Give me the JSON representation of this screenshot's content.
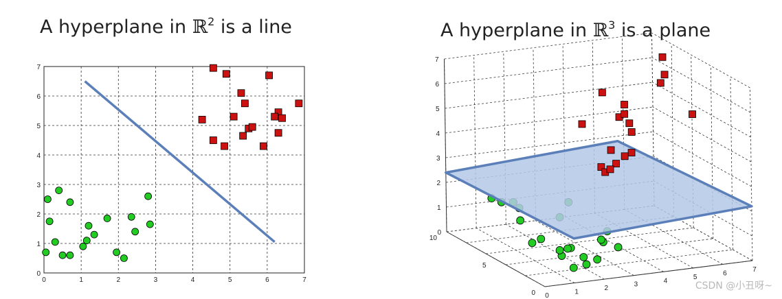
{
  "left_title": {
    "prefix": "A hyperplane in ",
    "symbol": "ℝ",
    "power": "2",
    "suffix": " is a line"
  },
  "right_title": {
    "prefix": "A hyperplane in ",
    "symbol": "ℝ",
    "power": "3",
    "suffix": " is a plane"
  },
  "watermark": "CSDN @小丑呀~",
  "colors": {
    "class_a": "#cc1111",
    "class_b": "#22cc22",
    "hyperplane": "#5b7fb8",
    "plane_fill": "#b4c8e6"
  },
  "chart_data": [
    {
      "type": "scatter",
      "title": "A hyperplane in ℝ2 is a line",
      "xlim": [
        0,
        7
      ],
      "ylim": [
        0,
        7
      ],
      "xticks": [
        "0",
        "1",
        "2",
        "3",
        "4",
        "5",
        "6",
        "7"
      ],
      "yticks": [
        "0",
        "1",
        "2",
        "3",
        "4",
        "5",
        "6",
        "7"
      ],
      "grid": true,
      "series": [
        {
          "marker": "square",
          "color": "#cc1111",
          "points": [
            [
              4.55,
              6.95
            ],
            [
              4.9,
              6.75
            ],
            [
              6.05,
              6.7
            ],
            [
              5.3,
              6.1
            ],
            [
              5.4,
              5.75
            ],
            [
              6.85,
              5.75
            ],
            [
              6.3,
              5.45
            ],
            [
              5.1,
              5.3
            ],
            [
              6.2,
              5.3
            ],
            [
              6.4,
              5.25
            ],
            [
              4.25,
              5.2
            ],
            [
              5.5,
              4.9
            ],
            [
              5.6,
              4.95
            ],
            [
              5.35,
              4.65
            ],
            [
              6.3,
              4.75
            ],
            [
              4.55,
              4.5
            ],
            [
              4.85,
              4.3
            ],
            [
              5.9,
              4.3
            ]
          ]
        },
        {
          "marker": "circle",
          "color": "#22cc22",
          "points": [
            [
              0.4,
              2.8
            ],
            [
              0.1,
              2.5
            ],
            [
              0.7,
              2.4
            ],
            [
              2.8,
              2.6
            ],
            [
              0.15,
              1.75
            ],
            [
              1.7,
              1.85
            ],
            [
              2.35,
              1.9
            ],
            [
              2.85,
              1.65
            ],
            [
              1.2,
              1.6
            ],
            [
              2.45,
              1.4
            ],
            [
              1.35,
              1.3
            ],
            [
              1.15,
              1.1
            ],
            [
              0.3,
              1.05
            ],
            [
              1.05,
              0.9
            ],
            [
              0.05,
              0.7
            ],
            [
              0.5,
              0.6
            ],
            [
              0.7,
              0.6
            ],
            [
              1.95,
              0.7
            ],
            [
              2.15,
              0.5
            ]
          ]
        }
      ],
      "line": {
        "x": [
          1.1,
          6.2
        ],
        "y": [
          6.5,
          1.05
        ]
      }
    },
    {
      "type": "scatter",
      "title": "A hyperplane in ℝ3 is a plane",
      "xlim": [
        0,
        7
      ],
      "ylim": [
        0,
        10
      ],
      "zlim": [
        0,
        7
      ],
      "xticks": [
        "0",
        "1",
        "2",
        "3",
        "4",
        "5",
        "6",
        "7"
      ],
      "yticks": [
        "0",
        "5",
        "10"
      ],
      "zticks": [
        "0",
        "1",
        "2",
        "3",
        "4",
        "5",
        "6",
        "7"
      ],
      "grid": true,
      "series": [
        {
          "marker": "square",
          "color": "#cc1111",
          "points": [
            [
              6.1,
              6.2,
              7
            ],
            [
              5.9,
              5.4,
              6.5
            ],
            [
              5.5,
              4.6,
              6.4
            ],
            [
              3.3,
              3.9,
              6.5
            ],
            [
              3.4,
              2.5,
              5.8
            ],
            [
              4.1,
              3.6,
              5.2
            ],
            [
              4.4,
              5.0,
              5.6
            ],
            [
              3.0,
              5.1,
              5.0
            ],
            [
              4.3,
              4.7,
              5.3
            ],
            [
              3.8,
              2.5,
              4.3
            ],
            [
              5.8,
              2.3,
              5.6
            ],
            [
              4.7,
              5.2,
              4.4
            ],
            [
              3.6,
              4.0,
              4.1
            ],
            [
              3.8,
              3.2,
              4.0
            ],
            [
              3.1,
              3.5,
              3.6
            ],
            [
              3.8,
              4.1,
              3.5
            ],
            [
              3.2,
              3.4,
              3.4
            ],
            [
              3.6,
              4.1,
              3.3
            ]
          ]
        },
        {
          "marker": "circle",
          "color": "#22cc22",
          "points": [
            [
              3.0,
              6.6,
              1.5
            ],
            [
              2.5,
              6.0,
              1.1
            ],
            [
              3.6,
              4.5,
              0.7
            ],
            [
              3.2,
              3.7,
              0.5
            ],
            [
              3.6,
              3.4,
              0.3
            ],
            [
              2.9,
              3.0,
              0.8
            ],
            [
              1.2,
              9.0,
              1.4
            ],
            [
              1.4,
              8.6,
              1.3
            ],
            [
              1.6,
              8.0,
              1.4
            ],
            [
              1.6,
              7.4,
              1.3
            ],
            [
              2.5,
              4.9,
              0.1
            ],
            [
              1.5,
              7.0,
              0.9
            ],
            [
              1.4,
              4.6,
              0.7
            ],
            [
              2.4,
              3.3,
              0.1
            ],
            [
              1.5,
              2.8,
              0.4
            ],
            [
              1.2,
              4.9,
              0.5
            ],
            [
              1.6,
              3.3,
              0.5
            ],
            [
              1.9,
              3.4,
              0.5
            ],
            [
              1.6,
              1.9,
              0.1
            ],
            [
              2.3,
              1.6,
              0.4
            ],
            [
              2.0,
              1.8,
              0.2
            ]
          ]
        }
      ],
      "plane": {
        "z": 2.3
      }
    }
  ]
}
